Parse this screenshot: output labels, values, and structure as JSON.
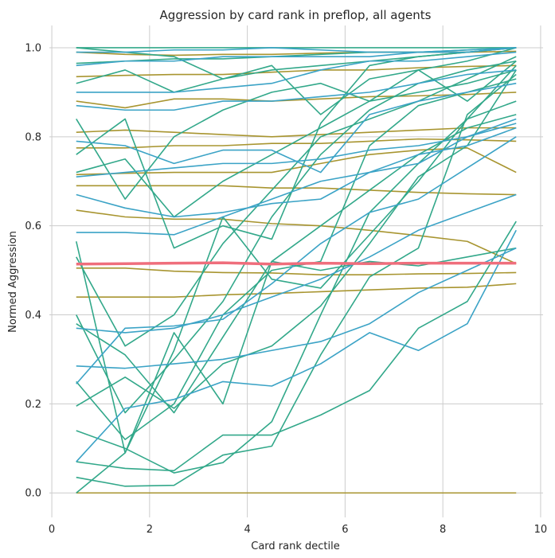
{
  "chart_data": {
    "type": "line",
    "title": "Aggression by card rank in preflop, all agents",
    "xlabel": "Card rank dectile",
    "ylabel": "Normed Aggression",
    "xlim": [
      -0.05,
      10.05
    ],
    "ylim": [
      -0.055,
      1.05
    ],
    "xticks": [
      0,
      2,
      4,
      6,
      8,
      10
    ],
    "yticks": [
      0.0,
      0.2,
      0.4,
      0.6,
      0.8,
      1.0
    ],
    "xtick_labels": [
      "0",
      "2",
      "4",
      "6",
      "8",
      "10"
    ],
    "ytick_labels": [
      "0.0",
      "0.2",
      "0.4",
      "0.6",
      "0.8",
      "1.0"
    ],
    "grid": true,
    "background": "#ffffff",
    "grid_color": "#cccccc",
    "x": [
      0.5,
      1.5,
      2.5,
      3.5,
      4.5,
      5.5,
      6.5,
      7.5,
      8.5,
      9.5
    ],
    "series": [
      {
        "color": "#a89530",
        "values": [
          0.0,
          0.0,
          0.0,
          0.0,
          0.0,
          0.0,
          0.0,
          0.0,
          0.0,
          0.0
        ]
      },
      {
        "color": "#a89530",
        "values": [
          0.44,
          0.44,
          0.44,
          0.445,
          0.448,
          0.452,
          0.456,
          0.46,
          0.462,
          0.47
        ]
      },
      {
        "color": "#a89530",
        "values": [
          0.505,
          0.505,
          0.498,
          0.495,
          0.494,
          0.49,
          0.49,
          0.492,
          0.493,
          0.495
        ]
      },
      {
        "color": "#a89530",
        "values": [
          0.635,
          0.62,
          0.615,
          0.615,
          0.605,
          0.6,
          0.59,
          0.578,
          0.565,
          0.515
        ]
      },
      {
        "color": "#a89530",
        "values": [
          0.69,
          0.69,
          0.69,
          0.69,
          0.685,
          0.685,
          0.68,
          0.675,
          0.672,
          0.67
        ]
      },
      {
        "color": "#a89530",
        "values": [
          0.715,
          0.718,
          0.72,
          0.72,
          0.72,
          0.74,
          0.76,
          0.77,
          0.775,
          0.72
        ]
      },
      {
        "color": "#a89530",
        "values": [
          0.775,
          0.775,
          0.78,
          0.78,
          0.785,
          0.785,
          0.79,
          0.795,
          0.793,
          0.79
        ]
      },
      {
        "color": "#a89530",
        "values": [
          0.81,
          0.815,
          0.81,
          0.805,
          0.8,
          0.805,
          0.81,
          0.815,
          0.82,
          0.82
        ]
      },
      {
        "color": "#a89530",
        "values": [
          0.88,
          0.865,
          0.885,
          0.885,
          0.88,
          0.885,
          0.89,
          0.892,
          0.895,
          0.9
        ]
      },
      {
        "color": "#a89530",
        "values": [
          0.935,
          0.938,
          0.94,
          0.94,
          0.945,
          0.95,
          0.95,
          0.955,
          0.958,
          0.96
        ]
      },
      {
        "color": "#a89530",
        "values": [
          0.99,
          0.985,
          0.983,
          0.985,
          0.985,
          0.988,
          0.99,
          0.99,
          0.99,
          0.992
        ]
      },
      {
        "color": "#ef6e7c",
        "values": [
          0.514,
          0.515,
          0.516,
          0.517,
          0.514,
          0.516,
          0.515,
          0.516,
          0.516,
          0.516
        ]
      },
      {
        "color": "#32a88a",
        "values": [
          0.0,
          0.09,
          0.36,
          0.2,
          0.52,
          0.5,
          0.52,
          0.51,
          0.53,
          0.55
        ]
      },
      {
        "color": "#32a88a",
        "values": [
          0.035,
          0.015,
          0.017,
          0.085,
          0.105,
          0.31,
          0.485,
          0.55,
          0.85,
          0.94
        ]
      },
      {
        "color": "#32a88a",
        "values": [
          0.07,
          0.055,
          0.05,
          0.13,
          0.13,
          0.175,
          0.23,
          0.37,
          0.43,
          0.61
        ]
      },
      {
        "color": "#32a88a",
        "values": [
          0.14,
          0.1,
          0.045,
          0.068,
          0.16,
          0.4,
          0.63,
          0.74,
          0.84,
          0.88
        ]
      },
      {
        "color": "#32a88a",
        "values": [
          0.195,
          0.26,
          0.19,
          0.29,
          0.33,
          0.42,
          0.56,
          0.71,
          0.78,
          0.95
        ]
      },
      {
        "color": "#32a88a",
        "values": [
          0.25,
          0.12,
          0.2,
          0.4,
          0.5,
          0.52,
          0.78,
          0.87,
          0.9,
          0.93
        ]
      },
      {
        "color": "#32a88a",
        "values": [
          0.38,
          0.31,
          0.18,
          0.35,
          0.52,
          0.6,
          0.68,
          0.76,
          0.82,
          0.85
        ]
      },
      {
        "color": "#32a88a",
        "values": [
          0.4,
          0.18,
          0.3,
          0.43,
          0.62,
          0.76,
          0.86,
          0.92,
          0.95,
          0.97
        ]
      },
      {
        "color": "#32a88a",
        "values": [
          0.53,
          0.33,
          0.4,
          0.56,
          0.68,
          0.8,
          0.84,
          0.88,
          0.93,
          0.98
        ]
      },
      {
        "color": "#32a88a",
        "values": [
          0.565,
          0.09,
          0.32,
          0.62,
          0.48,
          0.46,
          0.58,
          0.7,
          0.84,
          0.96
        ]
      },
      {
        "color": "#32a88a",
        "values": [
          0.72,
          0.75,
          0.62,
          0.7,
          0.76,
          0.82,
          0.88,
          0.9,
          0.92,
          0.95
        ]
      },
      {
        "color": "#32a88a",
        "values": [
          0.76,
          0.84,
          0.55,
          0.6,
          0.57,
          0.83,
          0.96,
          0.98,
          0.99,
          1.0
        ]
      },
      {
        "color": "#32a88a",
        "values": [
          0.84,
          0.66,
          0.8,
          0.86,
          0.9,
          0.92,
          0.88,
          0.95,
          0.97,
          1.0
        ]
      },
      {
        "color": "#32a88a",
        "values": [
          0.92,
          0.95,
          0.9,
          0.93,
          0.95,
          0.96,
          0.97,
          0.98,
          0.99,
          1.0
        ]
      },
      {
        "color": "#32a88a",
        "values": [
          0.965,
          0.97,
          0.975,
          0.975,
          0.98,
          0.985,
          0.99,
          0.99,
          0.995,
          1.0
        ]
      },
      {
        "color": "#32a88a",
        "values": [
          1.0,
          0.99,
          0.98,
          0.93,
          0.96,
          0.85,
          0.93,
          0.95,
          0.88,
          0.97
        ]
      },
      {
        "color": "#32a88a",
        "values": [
          1.0,
          1.0,
          1.0,
          1.0,
          1.0,
          1.0,
          1.0,
          1.0,
          1.0,
          1.0
        ]
      },
      {
        "color": "#3ba3c6",
        "values": [
          0.07,
          0.19,
          0.21,
          0.25,
          0.24,
          0.29,
          0.36,
          0.32,
          0.38,
          0.59
        ]
      },
      {
        "color": "#3ba3c6",
        "values": [
          0.245,
          0.37,
          0.375,
          0.39,
          0.47,
          0.56,
          0.63,
          0.66,
          0.73,
          0.8
        ]
      },
      {
        "color": "#3ba3c6",
        "values": [
          0.285,
          0.28,
          0.29,
          0.3,
          0.32,
          0.34,
          0.38,
          0.45,
          0.5,
          0.55
        ]
      },
      {
        "color": "#3ba3c6",
        "values": [
          0.37,
          0.36,
          0.37,
          0.4,
          0.44,
          0.48,
          0.53,
          0.59,
          0.63,
          0.67
        ]
      },
      {
        "color": "#3ba3c6",
        "values": [
          0.585,
          0.585,
          0.58,
          0.62,
          0.66,
          0.7,
          0.72,
          0.76,
          0.78,
          0.82
        ]
      },
      {
        "color": "#3ba3c6",
        "values": [
          0.67,
          0.64,
          0.62,
          0.63,
          0.65,
          0.66,
          0.72,
          0.74,
          0.8,
          0.84
        ]
      },
      {
        "color": "#3ba3c6",
        "values": [
          0.71,
          0.72,
          0.73,
          0.74,
          0.74,
          0.75,
          0.77,
          0.78,
          0.8,
          0.83
        ]
      },
      {
        "color": "#3ba3c6",
        "values": [
          0.79,
          0.78,
          0.74,
          0.77,
          0.77,
          0.72,
          0.85,
          0.88,
          0.9,
          0.92
        ]
      },
      {
        "color": "#3ba3c6",
        "values": [
          0.87,
          0.86,
          0.86,
          0.88,
          0.88,
          0.89,
          0.9,
          0.92,
          0.94,
          0.95
        ]
      },
      {
        "color": "#3ba3c6",
        "values": [
          0.9,
          0.9,
          0.9,
          0.91,
          0.92,
          0.95,
          0.97,
          0.97,
          0.98,
          0.99
        ]
      },
      {
        "color": "#3ba3c6",
        "values": [
          0.96,
          0.97,
          0.97,
          0.98,
          0.98,
          0.98,
          0.98,
          0.99,
          0.99,
          1.0
        ]
      },
      {
        "color": "#3ba3c6",
        "values": [
          0.99,
          0.99,
          0.995,
          0.995,
          1.0,
          0.995,
          0.99,
          0.99,
          0.995,
          1.0
        ]
      }
    ]
  }
}
